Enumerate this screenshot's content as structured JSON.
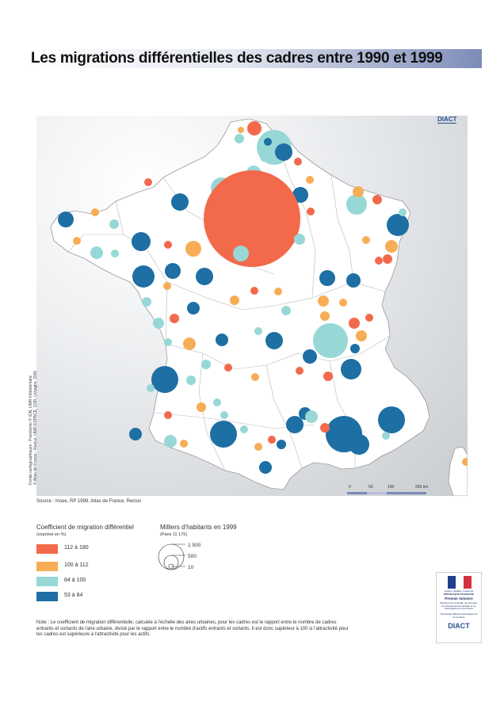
{
  "title": "Les migrations différentielles des cadres entre 1990 et 1999",
  "header_logo": "DIACT",
  "map_credit": {
    "line1": "Fonds cartographiques : Franciemo © IGN, UMR Infotelematic",
    "line2": "© Atlas de France - Reclus, UMR ESPACE, CDR, Lébaglio, 2005"
  },
  "scale": {
    "labels": [
      "0",
      "50",
      "100",
      "200 km"
    ]
  },
  "source": "Source : Insee, RP 1999, Atlas de France, Reclus",
  "legend_color": {
    "title": "Coefficient de migration différentiel",
    "subtitle": "(exprimé en %)",
    "classes": [
      {
        "label": "112 à 180",
        "color": "#f26a4b"
      },
      {
        "label": "100 à 112",
        "color": "#f7ad55"
      },
      {
        "label": "84 à 100",
        "color": "#97d8d6"
      },
      {
        "label": "53 à 84",
        "color": "#1d6fa4"
      }
    ]
  },
  "legend_size": {
    "title": "Milliers d'habitants en 1999",
    "subtitle": "(Paris 11 175)",
    "values": [
      "1 500",
      "500",
      "10"
    ]
  },
  "note": "Note : Le coefficient de migration différentielle, calculée à l'échelle des aires urbaines, pour les cadres est le rapport entre le nombre de cadres entrants et sortants de l'aire urbaine, divisé par le rapport entre le nombre d'actifs entrants et sortants. Il est donc supérieur à 100 si l'attractivité pour les cadres est supérieure à l'attractivité pour les actifs.",
  "logo": {
    "motto": "Liberté • Égalité • Fraternité",
    "republic": "RÉPUBLIQUE FRANÇAISE",
    "line1": "Premier ministre",
    "line2": "Ministère de l'écologie, de l'énergie, du développement durable et de l'aménagement du territoire",
    "line3": "Secrétariat d'État à l'aménagement du territoire",
    "diact": "DIACT"
  }
}
